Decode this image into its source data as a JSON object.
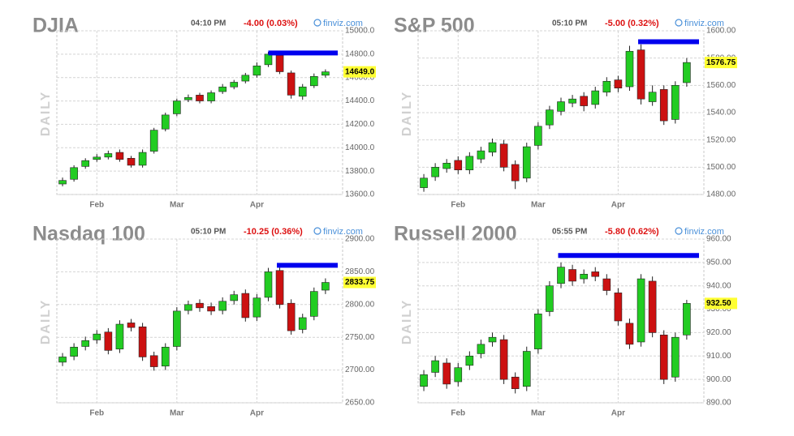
{
  "chart_data": [
    {
      "type": "candlestick",
      "title": "DJIA",
      "time": "04:10 PM",
      "change": "-4.00 (0.03%)",
      "source": "finviz.com",
      "side_label": "DAILY",
      "categories": [
        null,
        null,
        null,
        "Feb",
        null,
        null,
        null,
        null,
        null,
        null,
        "Mar",
        null,
        null,
        null,
        null,
        null,
        null,
        "Apr",
        null,
        null,
        null,
        null,
        null,
        null
      ],
      "open": [
        13690,
        13730,
        13840,
        13900,
        13920,
        13960,
        13910,
        13850,
        13970,
        14160,
        14290,
        14410,
        14450,
        14400,
        14480,
        14520,
        14570,
        14620,
        14710,
        14790,
        14640,
        14440,
        14530,
        14620
      ],
      "high": [
        13745,
        13850,
        13910,
        13945,
        13975,
        13985,
        13930,
        13985,
        14170,
        14300,
        14420,
        14455,
        14470,
        14490,
        14545,
        14580,
        14640,
        14730,
        14820,
        14810,
        14660,
        14545,
        14635,
        14670
      ],
      "low": [
        13670,
        13710,
        13820,
        13880,
        13900,
        13880,
        13830,
        13830,
        13950,
        14140,
        14270,
        14390,
        14380,
        14380,
        14460,
        14500,
        14550,
        14600,
        14690,
        14630,
        14420,
        14410,
        14510,
        14600
      ],
      "close": [
        13720,
        13830,
        13890,
        13920,
        13950,
        13900,
        13850,
        13960,
        14150,
        14280,
        14400,
        14430,
        14400,
        14470,
        14520,
        14560,
        14620,
        14700,
        14800,
        14650,
        14450,
        14520,
        14610,
        14649
      ],
      "up_color": "#22cc22",
      "down_color": "#cc1111",
      "grid": true,
      "ylim": [
        13600,
        15000
      ],
      "yticks": [
        {
          "value": 13600,
          "label": "13600.0"
        },
        {
          "value": 13800,
          "label": "13800.0"
        },
        {
          "value": 14000,
          "label": "14000.0"
        },
        {
          "value": 14200,
          "label": "14200.0"
        },
        {
          "value": 14400,
          "label": "14400.0"
        },
        {
          "value": 14600,
          "label": "14600.0"
        },
        {
          "value": 14800,
          "label": "14800.0"
        },
        {
          "value": 15000,
          "label": "15000.0"
        }
      ],
      "last_price": {
        "value": 14649,
        "label": "14649.0"
      },
      "resistance": {
        "value": 14810,
        "color": "#0000ee"
      }
    },
    {
      "type": "candlestick",
      "title": "S&P 500",
      "time": "05:10 PM",
      "change": "-5.00 (0.32%)",
      "source": "finviz.com",
      "side_label": "DAILY",
      "categories": [
        null,
        null,
        null,
        "Feb",
        null,
        null,
        null,
        null,
        null,
        null,
        "Mar",
        null,
        null,
        null,
        null,
        null,
        null,
        "Apr",
        null,
        null,
        null,
        null,
        null,
        null
      ],
      "open": [
        1485,
        1493,
        1499,
        1505,
        1498,
        1506,
        1511,
        1517,
        1502,
        1492,
        1516,
        1531,
        1541,
        1547,
        1552,
        1546,
        1555,
        1564,
        1559,
        1586,
        1548,
        1557,
        1535,
        1562
      ],
      "high": [
        1495,
        1503,
        1506,
        1508,
        1511,
        1515,
        1521,
        1520,
        1505,
        1518,
        1533,
        1545,
        1551,
        1553,
        1555,
        1559,
        1566,
        1567,
        1589,
        1590,
        1560,
        1560,
        1563,
        1580
      ],
      "low": [
        1482,
        1490,
        1496,
        1495,
        1495,
        1503,
        1508,
        1497,
        1484,
        1489,
        1513,
        1528,
        1538,
        1544,
        1541,
        1543,
        1552,
        1555,
        1556,
        1546,
        1545,
        1531,
        1532,
        1559
      ],
      "close": [
        1492,
        1500,
        1503,
        1498,
        1508,
        1512,
        1518,
        1500,
        1490,
        1515,
        1530,
        1542,
        1548,
        1550,
        1545,
        1556,
        1563,
        1558,
        1585,
        1550,
        1555,
        1534,
        1560,
        1576.75
      ],
      "up_color": "#22cc22",
      "down_color": "#cc1111",
      "grid": true,
      "ylim": [
        1480,
        1600
      ],
      "yticks": [
        {
          "value": 1480,
          "label": "1480.00"
        },
        {
          "value": 1500,
          "label": "1500.00"
        },
        {
          "value": 1520,
          "label": "1520.00"
        },
        {
          "value": 1540,
          "label": "1540.00"
        },
        {
          "value": 1560,
          "label": "1560.00"
        },
        {
          "value": 1580,
          "label": "1580.00"
        },
        {
          "value": 1600,
          "label": "1600.00"
        }
      ],
      "last_price": {
        "value": 1576.75,
        "label": "1576.75"
      },
      "resistance": {
        "value": 1592,
        "color": "#0000ee"
      }
    },
    {
      "type": "candlestick",
      "title": "Nasdaq 100",
      "time": "05:10 PM",
      "change": "-10.25 (0.36%)",
      "source": "finviz.com",
      "side_label": "DAILY",
      "categories": [
        null,
        null,
        null,
        "Feb",
        null,
        null,
        null,
        null,
        null,
        null,
        "Mar",
        null,
        null,
        null,
        null,
        null,
        null,
        "Apr",
        null,
        null,
        null,
        null,
        null,
        null
      ],
      "open": [
        2712,
        2721,
        2736,
        2746,
        2758,
        2732,
        2772,
        2766,
        2722,
        2706,
        2736,
        2791,
        2802,
        2797,
        2791,
        2806,
        2817,
        2781,
        2811,
        2852,
        2802,
        2762,
        2782,
        2822
      ],
      "high": [
        2726,
        2741,
        2751,
        2761,
        2764,
        2776,
        2778,
        2772,
        2728,
        2741,
        2796,
        2806,
        2808,
        2803,
        2811,
        2821,
        2823,
        2816,
        2856,
        2858,
        2808,
        2786,
        2826,
        2840
      ],
      "low": [
        2706,
        2715,
        2730,
        2740,
        2724,
        2726,
        2759,
        2714,
        2699,
        2700,
        2730,
        2785,
        2789,
        2784,
        2785,
        2800,
        2774,
        2775,
        2805,
        2794,
        2754,
        2756,
        2776,
        2816
      ],
      "close": [
        2720,
        2735,
        2745,
        2755,
        2730,
        2770,
        2765,
        2720,
        2705,
        2735,
        2790,
        2800,
        2795,
        2790,
        2805,
        2815,
        2780,
        2810,
        2850,
        2800,
        2760,
        2780,
        2820,
        2833.75
      ],
      "up_color": "#22cc22",
      "down_color": "#cc1111",
      "grid": true,
      "ylim": [
        2650,
        2900
      ],
      "yticks": [
        {
          "value": 2650,
          "label": "2650.00"
        },
        {
          "value": 2700,
          "label": "2700.00"
        },
        {
          "value": 2750,
          "label": "2750.00"
        },
        {
          "value": 2800,
          "label": "2800.00"
        },
        {
          "value": 2850,
          "label": "2850.00"
        },
        {
          "value": 2900,
          "label": "2900.00"
        }
      ],
      "last_price": {
        "value": 2833.75,
        "label": "2833.75"
      },
      "resistance": {
        "value": 2860,
        "color": "#0000ee"
      }
    },
    {
      "type": "candlestick",
      "title": "Russell 2000",
      "time": "05:55 PM",
      "change": "-5.80 (0.62%)",
      "source": "finviz.com",
      "side_label": "DAILY",
      "categories": [
        null,
        null,
        null,
        "Feb",
        null,
        null,
        null,
        null,
        null,
        null,
        "Mar",
        null,
        null,
        null,
        null,
        null,
        null,
        "Apr",
        null,
        null,
        null,
        null,
        null,
        null
      ],
      "open": [
        897,
        903,
        907,
        899,
        906,
        911,
        916,
        917,
        901,
        897,
        913,
        929,
        941,
        947,
        943,
        946,
        943,
        937,
        924,
        916,
        942,
        919,
        901,
        919
      ],
      "high": [
        904,
        910,
        909,
        907,
        912,
        917,
        920,
        919,
        903,
        914,
        930,
        942,
        950,
        949,
        947,
        948,
        945,
        939,
        926,
        945,
        944,
        921,
        920,
        934
      ],
      "low": [
        895,
        901,
        896,
        897,
        904,
        909,
        914,
        898,
        894,
        895,
        911,
        927,
        939,
        940,
        941,
        942,
        936,
        923,
        913,
        914,
        918,
        898,
        899,
        917
      ],
      "close": [
        902,
        908,
        898,
        905,
        910,
        915,
        918,
        900,
        896,
        912,
        928,
        940,
        948,
        942,
        945,
        944,
        938,
        925,
        915,
        943,
        920,
        900,
        918,
        932.5
      ],
      "up_color": "#22cc22",
      "down_color": "#cc1111",
      "grid": true,
      "ylim": [
        890,
        960
      ],
      "yticks": [
        {
          "value": 890,
          "label": "890.00"
        },
        {
          "value": 900,
          "label": "900.00"
        },
        {
          "value": 910,
          "label": "910.00"
        },
        {
          "value": 920,
          "label": "920.00"
        },
        {
          "value": 930,
          "label": "930.00"
        },
        {
          "value": 940,
          "label": "940.00"
        },
        {
          "value": 950,
          "label": "950.00"
        },
        {
          "value": 960,
          "label": "960.00"
        }
      ],
      "last_price": {
        "value": 932.5,
        "label": "932.50"
      },
      "resistance": {
        "value": 953,
        "color": "#0000ee"
      }
    }
  ]
}
